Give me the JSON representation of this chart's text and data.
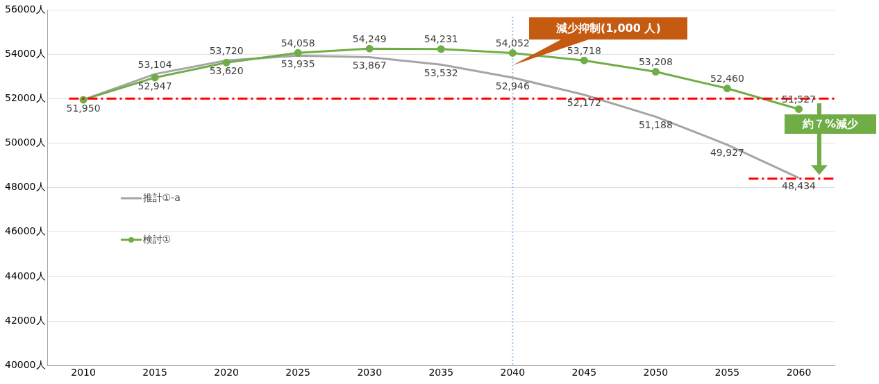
{
  "chart_data": {
    "type": "line",
    "x": [
      2010,
      2015,
      2020,
      2025,
      2030,
      2035,
      2040,
      2045,
      2050,
      2055,
      2060
    ],
    "xlim": [
      2007.5,
      2062.5
    ],
    "xticks": [
      2010,
      2015,
      2020,
      2025,
      2030,
      2035,
      2040,
      2045,
      2050,
      2055,
      2060
    ],
    "ylim": [
      40000,
      56000
    ],
    "yticks": [
      {
        "value": 40000,
        "label": "40000人"
      },
      {
        "value": 42000,
        "label": "42000人"
      },
      {
        "value": 44000,
        "label": "44000人"
      },
      {
        "value": 46000,
        "label": "46000人"
      },
      {
        "value": 48000,
        "label": "48000人"
      },
      {
        "value": 50000,
        "label": "50000人"
      },
      {
        "value": 52000,
        "label": "52000人"
      },
      {
        "value": 54000,
        "label": "54000人"
      },
      {
        "value": 56000,
        "label": "56000人"
      }
    ],
    "grid": "y",
    "legend": "left",
    "series": [
      {
        "name": "推計①-a",
        "color": "#a5a5a5",
        "marker": "none",
        "values": [
          51950,
          53104,
          53720,
          53935,
          53867,
          53532,
          52946,
          52172,
          51188,
          49927,
          48434
        ],
        "value_labels": [
          null,
          "53,104",
          "53,720",
          "53,935",
          "53,867",
          "53,532",
          "52,946",
          "52,172",
          "51,188",
          "49,927",
          "48,434"
        ]
      },
      {
        "name": "検討①",
        "color": "#70ad47",
        "marker": "circle",
        "values": [
          51950,
          52947,
          53620,
          54058,
          54249,
          54231,
          54052,
          53718,
          53208,
          52460,
          51527
        ],
        "value_labels": [
          "51,950",
          "52,947",
          "53,620",
          "54,058",
          "54,249",
          "54,231",
          "54,052",
          "53,718",
          "53,208",
          "52,460",
          "51,527"
        ]
      },
      {
        "color": "#ff0000",
        "marker": "none",
        "line_style": "dashed",
        "x": [
          2009,
          2062.5
        ],
        "values": [
          52000,
          52000
        ]
      },
      {
        "color": "#ff0000",
        "marker": "none",
        "line_style": "dashed",
        "x": [
          2056.5,
          2062.5
        ],
        "values": [
          48400,
          48400
        ]
      }
    ],
    "ref_lines": [
      {
        "axis": "x",
        "value": 2040,
        "color": "#9dc3e6",
        "line_style": "dotted"
      }
    ],
    "annotations": [
      "減少抑制(1,000 人)",
      "約７%減少"
    ]
  }
}
